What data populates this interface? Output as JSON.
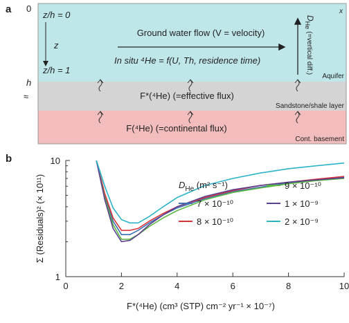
{
  "panels": {
    "a": "a",
    "b": "b"
  },
  "diagram": {
    "top": "0",
    "bottom": "h",
    "z_top": "z/h = 0",
    "z_axis": "z",
    "z_bottom": "z/h = 1",
    "flow": "Ground water flow (V = velocity)",
    "in_situ": "In situ ⁴He = f(U, Th, residence time)",
    "dhe_symbol": "D",
    "dhe_sub": "He",
    "dhe_note": "(=vertical diff.)",
    "x_axis": "x",
    "aquifer": "Aquifer",
    "effective_flux": "F*(⁴He) (=effective flux)",
    "layer": "Sandstone/shale layer",
    "continental_flux": "F(⁴He) (=continental flux)",
    "basement": "Cont. basement"
  },
  "chart_data": {
    "type": "line",
    "log_y": true,
    "xlabel": "F*(⁴He) (cm³ (STP) cm⁻² yr⁻¹ × 10⁻⁷)",
    "ylabel": "Σ (Residuals)² (× 10¹¹)",
    "legend_title": {
      "symbol": "D",
      "sub": "He",
      "unit": " (m² s⁻¹)"
    },
    "xlim": [
      0,
      10
    ],
    "xticks": [
      0,
      2,
      4,
      6,
      8,
      10
    ],
    "ylim": [
      1,
      10
    ],
    "yticks": [
      1,
      10
    ],
    "x": [
      1.1,
      1.4,
      1.7,
      2,
      2.3,
      2.6,
      3,
      3.5,
      4,
      5,
      6,
      7,
      8,
      9,
      10
    ],
    "series": [
      {
        "name": "7 × 10⁻¹⁰",
        "color": "#3b6fb5",
        "values": [
          10,
          5.0,
          3.0,
          2.3,
          2.3,
          2.5,
          2.9,
          3.4,
          3.9,
          4.7,
          5.4,
          5.9,
          6.4,
          6.8,
          7.2
        ]
      },
      {
        "name": "8 × 10⁻¹⁰",
        "color": "#d9343a",
        "values": [
          10,
          5.2,
          3.2,
          2.5,
          2.5,
          2.6,
          3.0,
          3.5,
          4.0,
          4.8,
          5.5,
          6.1,
          6.5,
          6.9,
          7.3
        ]
      },
      {
        "name": "9 × 10⁻¹⁰",
        "color": "#5cb844",
        "values": [
          10,
          4.8,
          2.8,
          2.1,
          2.1,
          2.3,
          2.7,
          3.2,
          3.7,
          4.6,
          5.3,
          5.8,
          6.3,
          6.7,
          7.0
        ]
      },
      {
        "name": "1 × 10⁻⁹",
        "color": "#5b3e8e",
        "values": [
          10,
          4.6,
          2.6,
          2.0,
          2.05,
          2.3,
          2.8,
          3.4,
          4.0,
          4.9,
          5.6,
          6.1,
          6.5,
          6.8,
          7.1
        ]
      },
      {
        "name": "2 × 10⁻⁹",
        "color": "#2bb3c9",
        "values": [
          10,
          6.0,
          3.9,
          3.1,
          2.9,
          2.9,
          3.3,
          4.0,
          4.8,
          6.1,
          7.0,
          7.8,
          8.5,
          9.0,
          9.5
        ]
      }
    ]
  }
}
